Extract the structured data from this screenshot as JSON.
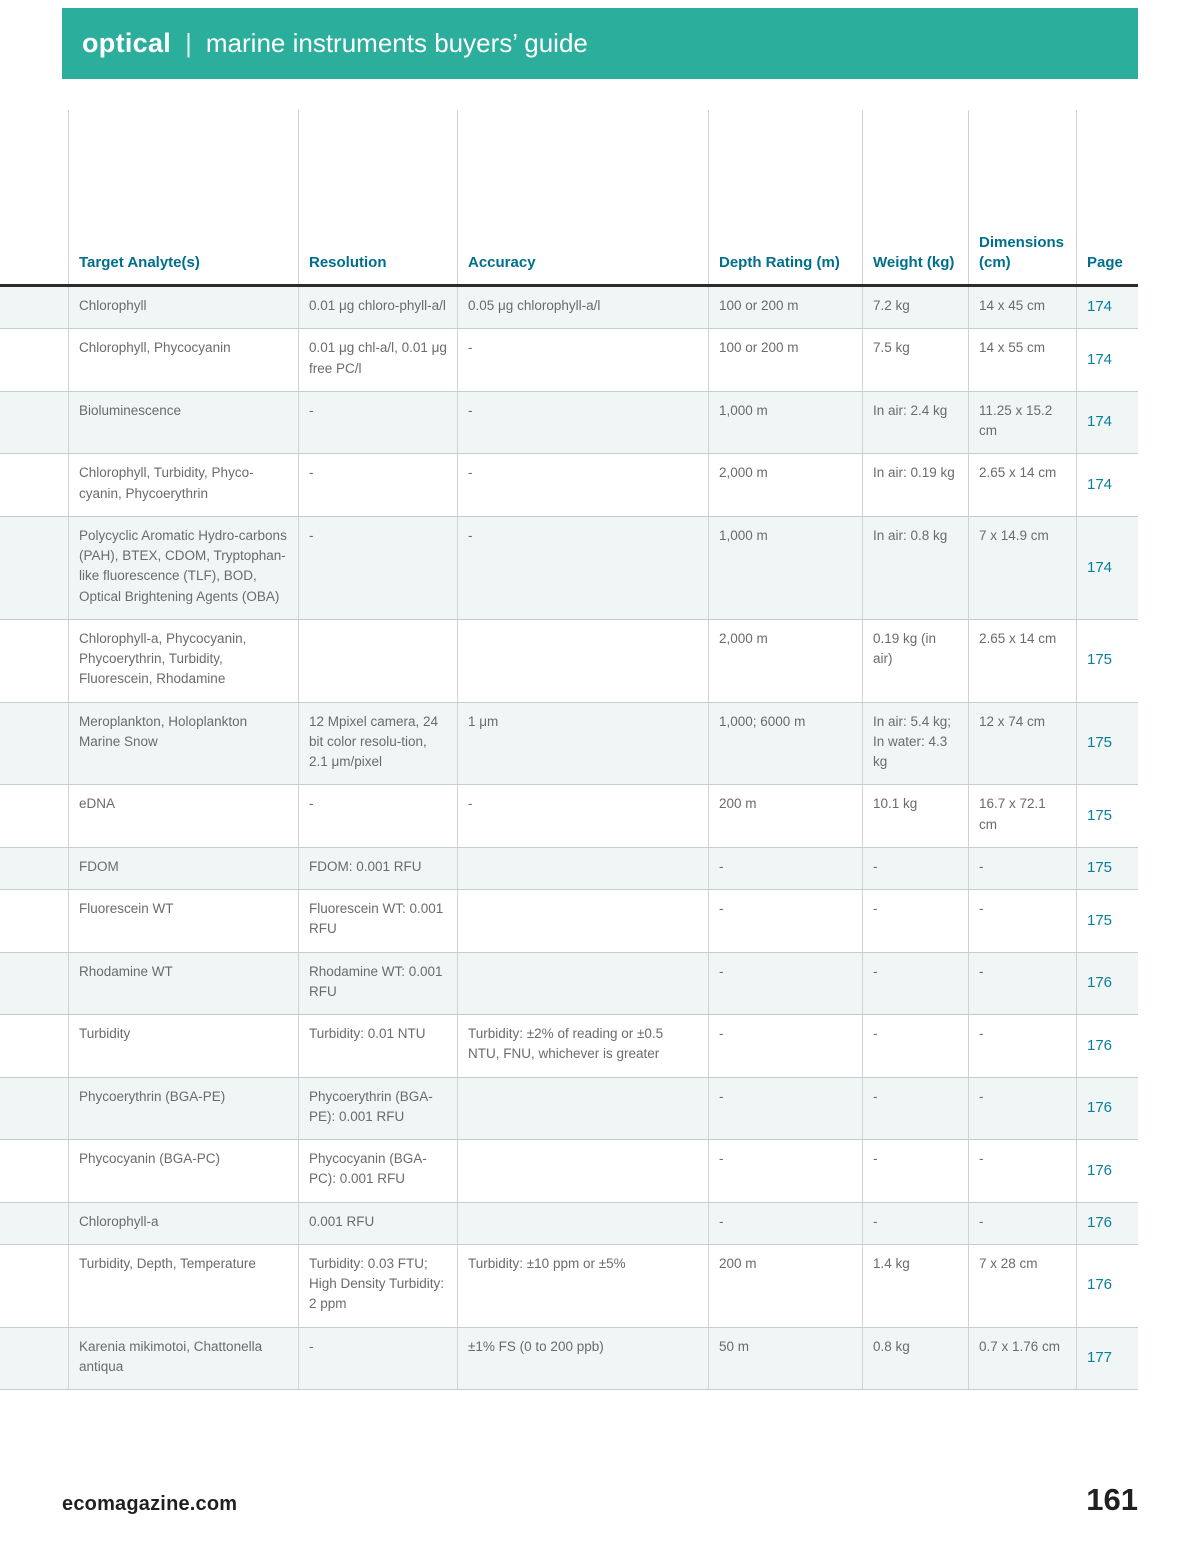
{
  "banner": {
    "title_bold": "optical",
    "separator": "|",
    "title_rest": "marine instruments buyers’ guide",
    "bg_color": "#2BAE9B"
  },
  "table": {
    "columns": [
      "Target Analyte(s)",
      "Resolution",
      "Accuracy",
      "Depth Rating (m)",
      "Weight (kg)",
      "Dimensions (cm)",
      "Page"
    ],
    "rows": [
      {
        "analyte": "Chlorophyll",
        "resolution": "0.01 μg chloro-phyll-a/l",
        "accuracy": "0.05 μg chlorophyll-a/l",
        "depth": "100 or 200 m",
        "weight": "7.2 kg",
        "dimensions": "14 x 45 cm",
        "page": "174"
      },
      {
        "analyte": "Chlorophyll, Phycocyanin",
        "resolution": "0.01 μg chl-a/l, 0.01 μg free PC/l",
        "accuracy": "-",
        "depth": "100 or 200 m",
        "weight": "7.5 kg",
        "dimensions": "14 x 55 cm",
        "page": "174"
      },
      {
        "analyte": "Bioluminescence",
        "resolution": "-",
        "accuracy": "-",
        "depth": "1,000 m",
        "weight": "In air: 2.4 kg",
        "dimensions": "11.25 x 15.2 cm",
        "page": "174"
      },
      {
        "analyte": "Chlorophyll, Turbidity, Phyco-cyanin, Phycoerythrin",
        "resolution": "-",
        "accuracy": "-",
        "depth": "2,000 m",
        "weight": "In air: 0.19 kg",
        "dimensions": "2.65 x 14 cm",
        "page": "174"
      },
      {
        "analyte": "Polycyclic Aromatic Hydro-carbons (PAH), BTEX, CDOM, Tryptophan-like fluorescence (TLF), BOD, Optical Brightening Agents (OBA)",
        "resolution": "-",
        "accuracy": "-",
        "depth": "1,000 m",
        "weight": "In air: 0.8 kg",
        "dimensions": "7 x 14.9 cm",
        "page": "174"
      },
      {
        "analyte": "Chlorophyll-a, Phycocyanin, Phycoerythrin, Turbidity, Fluorescein, Rhodamine",
        "resolution": "",
        "accuracy": "",
        "depth": "2,000 m",
        "weight": "0.19 kg (in air)",
        "dimensions": "2.65 x 14 cm",
        "page": "175"
      },
      {
        "analyte": "Meroplankton, Holoplankton Marine Snow",
        "resolution": "12 Mpixel camera, 24 bit color resolu-tion, 2.1 μm/pixel",
        "accuracy": "1 μm",
        "depth": "1,000;  6000 m",
        "weight": "In air: 5.4 kg; In water: 4.3 kg",
        "dimensions": "12 x 74 cm",
        "page": "175"
      },
      {
        "analyte": "eDNA",
        "resolution": "-",
        "accuracy": "-",
        "depth": "200 m",
        "weight": "10.1 kg",
        "dimensions": "16.7 x 72.1 cm",
        "page": "175"
      },
      {
        "analyte": "FDOM",
        "resolution": "FDOM: 0.001 RFU",
        "accuracy": "",
        "depth": "-",
        "weight": "-",
        "dimensions": "-",
        "page": "175"
      },
      {
        "analyte": "Fluorescein WT",
        "resolution": "Fluorescein WT: 0.001 RFU",
        "accuracy": "",
        "depth": "-",
        "weight": "-",
        "dimensions": "-",
        "page": "175"
      },
      {
        "analyte": "Rhodamine WT",
        "resolution": "Rhodamine WT: 0.001 RFU",
        "accuracy": "",
        "depth": "-",
        "weight": "-",
        "dimensions": "-",
        "page": "176"
      },
      {
        "analyte": "Turbidity",
        "resolution": "Turbidity: 0.01 NTU",
        "accuracy": "Turbidity: ±2% of reading or ±0.5 NTU, FNU, whichever is greater",
        "depth": "-",
        "weight": "-",
        "dimensions": "-",
        "page": "176"
      },
      {
        "analyte": "Phycoerythrin (BGA-PE)",
        "resolution": "Phycoerythrin (BGA-PE): 0.001 RFU",
        "accuracy": "",
        "depth": "-",
        "weight": "-",
        "dimensions": "-",
        "page": "176"
      },
      {
        "analyte": "Phycocyanin (BGA-PC)",
        "resolution": "Phycocyanin (BGA-PC): 0.001 RFU",
        "accuracy": "",
        "depth": "-",
        "weight": "-",
        "dimensions": "-",
        "page": "176"
      },
      {
        "analyte": "Chlorophyll-a",
        "resolution": "0.001 RFU",
        "accuracy": "",
        "depth": "-",
        "weight": "-",
        "dimensions": "-",
        "page": "176"
      },
      {
        "analyte": "Turbidity, Depth, Temperature",
        "resolution": "Turbidity: 0.03 FTU; High Density Turbidity: 2 ppm",
        "accuracy": "Turbidity: ±10 ppm or ±5%",
        "depth": "200 m",
        "weight": "1.4 kg",
        "dimensions": "7 x 28 cm",
        "page": "176"
      },
      {
        "analyte": "Karenia mikimotoi, Chattonella antiqua",
        "resolution": "-",
        "accuracy": "±1% FS (0 to 200 ppb)",
        "depth": "50 m",
        "weight": "0.8 kg",
        "dimensions": "0.7 x 1.76 cm",
        "page": "177"
      }
    ]
  },
  "footer": {
    "website": "ecomagazine.com",
    "page_number": "161"
  }
}
